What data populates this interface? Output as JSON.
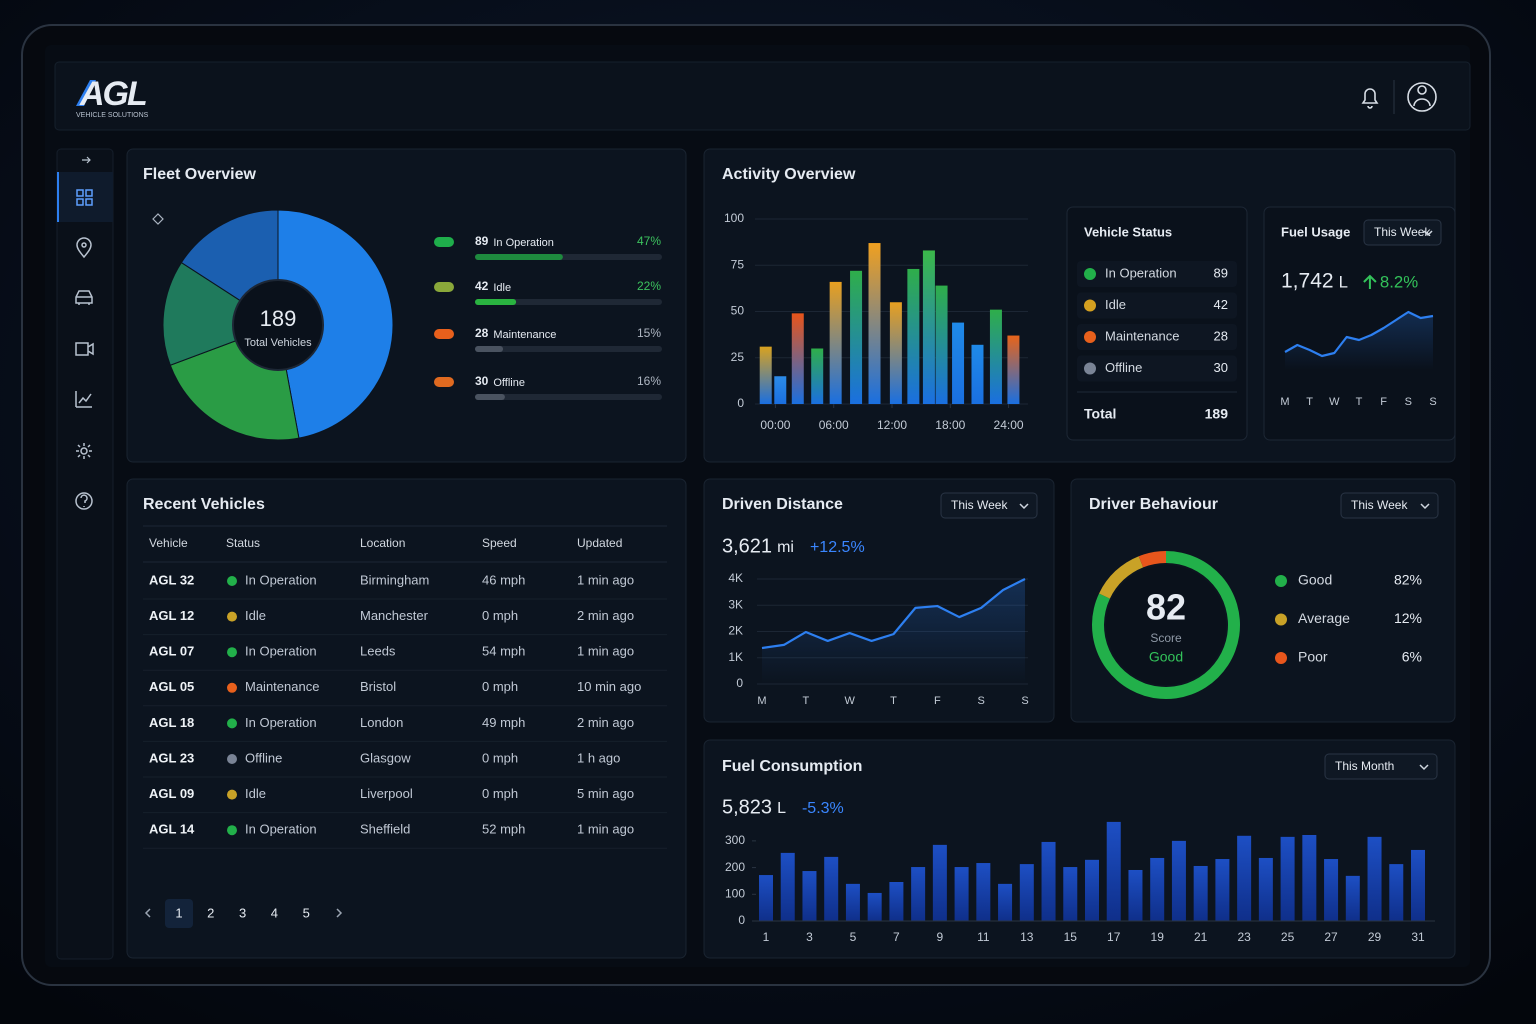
{
  "header": {
    "logo": "AGL",
    "logo_subtitle": "VEHICLE SOLUTIONS"
  },
  "fleet_overview": {
    "title": "Fleet Overview",
    "total": 189,
    "total_label": "Total Vehicles",
    "pie_colors": [
      "#1e7fe8",
      "#2a9c45",
      "#1f7a5c",
      "#1b5fb0"
    ],
    "items": [
      {
        "count": 89,
        "label": "In Operation",
        "percent": 47,
        "percent_label": "47%",
        "color": "#1fae4b",
        "bar_color": "#1e8a3e",
        "percent_color": "#3cc25e"
      },
      {
        "count": 42,
        "label": "Idle",
        "percent": 22,
        "percent_label": "22%",
        "color": "#8aa83a",
        "bar_color": "#2ab340",
        "percent_color": "#3cc25e"
      },
      {
        "count": 28,
        "label": "Maintenance",
        "percent": 15,
        "percent_label": "15%",
        "color": "#e8601c",
        "bar_color": "#4a5360",
        "percent_color": "#aeb6c2"
      },
      {
        "count": 30,
        "label": "Offline",
        "percent": 16,
        "percent_label": "16%",
        "color": "#e06a20",
        "bar_color": "#4a5360",
        "percent_color": "#aeb6c2"
      }
    ]
  },
  "activity_overview": {
    "title": "Activity Overview",
    "chart": {
      "type": "bar",
      "x": [
        -1,
        0.5,
        2.3,
        4.3,
        6.2,
        8.3,
        10.2,
        12.4,
        14.2,
        15.8,
        17.1,
        18.8,
        20.8,
        22.7,
        24.5
      ],
      "values": [
        31,
        15,
        49,
        30,
        66,
        72,
        87,
        55,
        73,
        83,
        64,
        44,
        32,
        51,
        37
      ],
      "colors": [
        "#d9a21f",
        "#2c8be8",
        "#e8541a",
        "#2fae4a",
        "#e8a020",
        "#2fae4a",
        "#f0a020",
        "#e8a020",
        "#2fae4a",
        "#3bb84a",
        "#2fae4a",
        "#1f8ae8",
        "#1f8ae8",
        "#2fae4a",
        "#e8641a"
      ],
      "xlim": [
        -2,
        26
      ],
      "xticks": [
        {
          "value": 0,
          "label": "00:00"
        },
        {
          "value": 6,
          "label": "06:00"
        },
        {
          "value": 12,
          "label": "12:00"
        },
        {
          "value": 18,
          "label": "18:00"
        },
        {
          "value": 24,
          "label": "24:00"
        }
      ],
      "ylim": [
        0,
        100
      ],
      "yticks": [
        0,
        25,
        50,
        75,
        100
      ],
      "grid": true
    }
  },
  "vehicle_status": {
    "title": "Vehicle Status",
    "rows": [
      {
        "label": "In Operation",
        "value": 89,
        "color": "#22b04a"
      },
      {
        "label": "Idle",
        "value": 42,
        "color": "#d4a020"
      },
      {
        "label": "Maintenance",
        "value": 28,
        "color": "#e8601c"
      },
      {
        "label": "Offline",
        "value": 30,
        "color": "#7a8496"
      }
    ],
    "total_label": "Total",
    "total": 189
  },
  "fuel_usage": {
    "title": "Fuel Usage",
    "period": "This Week",
    "value": "1,742",
    "unit": "L",
    "change": "8.2%",
    "chart": {
      "type": "line",
      "categories": [
        "M",
        null,
        "T",
        null,
        "W",
        null,
        "T",
        null,
        "F",
        null,
        "S",
        null,
        "S"
      ],
      "values": [
        18,
        25,
        20,
        14,
        17,
        33,
        30,
        35,
        42,
        50,
        58,
        52,
        54
      ],
      "ylim": [
        0,
        70
      ],
      "color": "#2d7ff0"
    }
  },
  "driven_distance": {
    "title": "Driven Distance",
    "period": "This Week",
    "value": "3,621",
    "unit": "mi",
    "change": "+12.5%",
    "chart": {
      "type": "line",
      "categories": [
        "M",
        null,
        "T",
        null,
        "W",
        null,
        "T",
        null,
        "F",
        null,
        "S",
        null,
        "S"
      ],
      "values": [
        1370,
        1490,
        1980,
        1640,
        1940,
        1640,
        1900,
        2900,
        2970,
        2550,
        2900,
        3580,
        4000
      ],
      "ylim": [
        0,
        4000
      ],
      "yticks": [
        0,
        {
          "value": 1000,
          "label": "1K"
        },
        {
          "value": 2000,
          "label": "2K"
        },
        {
          "value": 3000,
          "label": "3K"
        },
        {
          "value": 4000,
          "label": "4K"
        }
      ],
      "grid": true,
      "color": "#2d7ff0"
    }
  },
  "driver_behaviour": {
    "title": "Driver Behaviour",
    "period": "This Week",
    "score": 82,
    "score_label": "Score",
    "rating": "Good",
    "items": [
      {
        "label": "Good",
        "percent": 82,
        "percent_label": "82%",
        "color": "#22b04a"
      },
      {
        "label": "Average",
        "percent": 12,
        "percent_label": "12%",
        "color": "#c9a227"
      },
      {
        "label": "Poor",
        "percent": 6,
        "percent_label": "6%",
        "color": "#e8561c"
      }
    ]
  },
  "fuel_consumption": {
    "title": "Fuel Consumption",
    "period": "This Month",
    "value": "5,823",
    "unit": "L",
    "change": "-5.3%",
    "chart": {
      "type": "bar",
      "categories": [
        "1",
        null,
        "3",
        null,
        "5",
        null,
        "7",
        null,
        "9",
        null,
        "11",
        null,
        "13",
        null,
        "15",
        null,
        "17",
        null,
        "19",
        null,
        "21",
        null,
        "23",
        null,
        "25",
        null,
        "27",
        null,
        "29",
        null,
        "31"
      ],
      "values": [
        172,
        255,
        187,
        240,
        139,
        105,
        146,
        202,
        285,
        202,
        217,
        139,
        213,
        296,
        202,
        229,
        371,
        191,
        236,
        300,
        206,
        232,
        319,
        236,
        315,
        322,
        232,
        169,
        315,
        213,
        266
      ],
      "ylim": [
        0,
        380
      ],
      "yticks": [
        0,
        100,
        200,
        300
      ],
      "color": "#1d4fc4"
    }
  },
  "recent_vehicles": {
    "title": "Recent Vehicles",
    "columns": [
      "Vehicle",
      "Status",
      "Location",
      "Speed",
      "Updated"
    ],
    "rows": [
      [
        "AGL 32",
        "In Operation",
        "Birmingham",
        "46 mph",
        "1 min ago"
      ],
      [
        "AGL 12",
        "Idle",
        "Manchester",
        "0 mph",
        "2 min ago"
      ],
      [
        "AGL 07",
        "In Operation",
        "Leeds",
        "54 mph",
        "1 min ago"
      ],
      [
        "AGL 05",
        "Maintenance",
        "Bristol",
        "0 mph",
        "10 min ago"
      ],
      [
        "AGL 18",
        "In Operation",
        "London",
        "49 mph",
        "2 min ago"
      ],
      [
        "AGL 23",
        "Offline",
        "Glasgow",
        "0 mph",
        "1 h ago"
      ],
      [
        "AGL 09",
        "Idle",
        "Liverpool",
        "0 mph",
        "5 min ago"
      ],
      [
        "AGL 14",
        "In Operation",
        "Sheffield",
        "52 mph",
        "1 min ago"
      ]
    ],
    "status_colors": {
      "In Operation": "#22b04a",
      "Idle": "#c9a227",
      "Maintenance": "#e8601c",
      "Offline": "#7a8496"
    },
    "pages": [
      1,
      2,
      3,
      4,
      5
    ],
    "active_page": 0
  }
}
